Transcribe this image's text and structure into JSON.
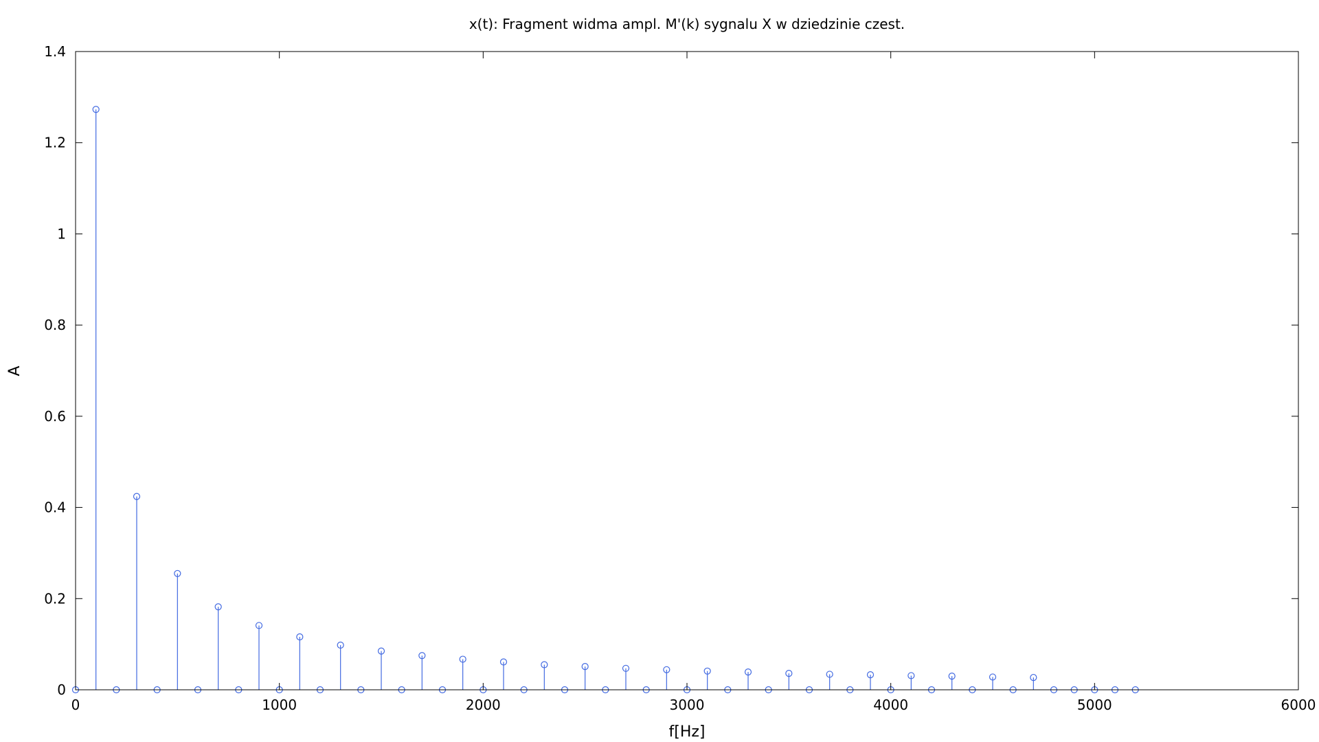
{
  "chart_data": {
    "type": "stem",
    "title": "x(t): Fragment widma ampl. M'(k) sygnalu X w dziedzinie czest.",
    "xlabel": "f[Hz]",
    "ylabel": "A",
    "xlim": [
      0,
      6000
    ],
    "ylim": [
      0,
      1.4
    ],
    "xticks": [
      0,
      1000,
      2000,
      3000,
      4000,
      5000,
      6000
    ],
    "xtick_labels": [
      "0",
      "1000",
      "2000",
      "3000",
      "4000",
      "5000",
      "6000"
    ],
    "yticks": [
      0,
      0.2,
      0.4,
      0.6,
      0.8,
      1.0,
      1.2,
      1.4
    ],
    "ytick_labels": [
      "0",
      "0.2",
      "0.4",
      "0.6",
      "0.8",
      "1",
      "1.2",
      "1.4"
    ],
    "grid": false,
    "color": "#4169e1",
    "marker": "open-circle",
    "series": [
      {
        "x": [
          0,
          100,
          200,
          300,
          400,
          500,
          600,
          700,
          800,
          900,
          1000,
          1100,
          1200,
          1300,
          1400,
          1500,
          1600,
          1700,
          1800,
          1900,
          2000,
          2100,
          2200,
          2300,
          2400,
          2500,
          2600,
          2700,
          2800,
          2900,
          3000,
          3100,
          3200,
          3300,
          3400,
          3500,
          3600,
          3700,
          3800,
          3900,
          4000,
          4100,
          4200,
          4300,
          4400,
          4500,
          4600,
          4700,
          4800,
          4900,
          5000,
          5100,
          5200
        ],
        "y": [
          0,
          1.273,
          0,
          0.424,
          0,
          0.255,
          0,
          0.182,
          0,
          0.141,
          0,
          0.116,
          0,
          0.098,
          0,
          0.085,
          0,
          0.075,
          0,
          0.067,
          0,
          0.061,
          0,
          0.055,
          0,
          0.051,
          0,
          0.047,
          0,
          0.044,
          0,
          0.041,
          0,
          0.039,
          0,
          0.036,
          0,
          0.034,
          0,
          0.033,
          0,
          0.031,
          0,
          0.03,
          0,
          0.028,
          0,
          0.027,
          0,
          0,
          0,
          0,
          0
        ]
      }
    ]
  }
}
